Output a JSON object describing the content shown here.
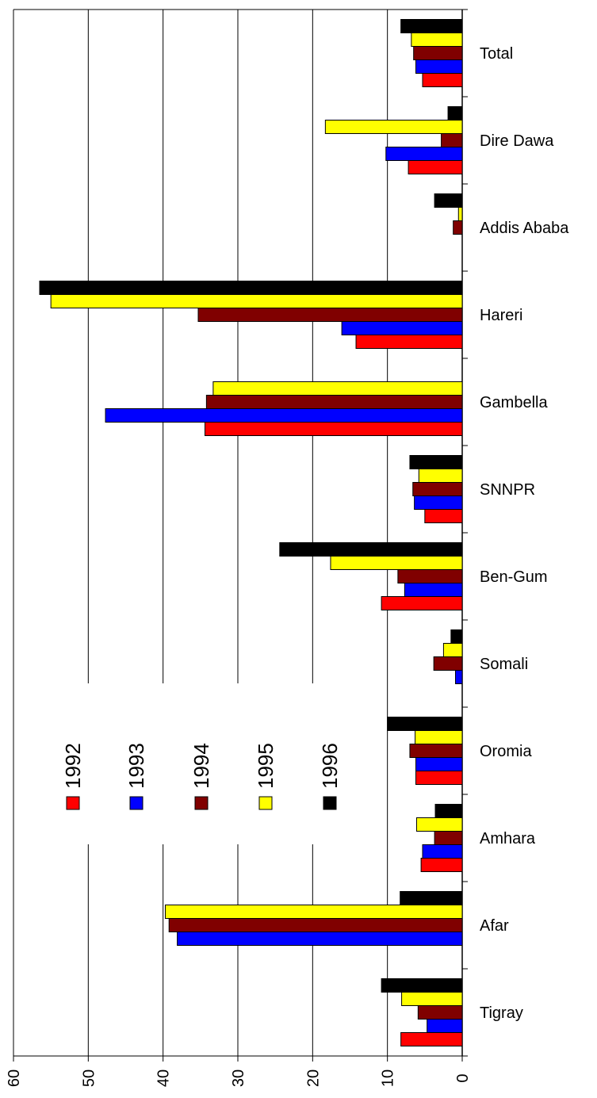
{
  "chart_data": {
    "type": "bar",
    "orientation": "horizontal",
    "categories": [
      "Total",
      "Dire Dawa",
      "Addis Ababa",
      "Hareri",
      "Gambella",
      "SNNPR",
      "Ben-Gum",
      "Somali",
      "Oromia",
      "Amhara",
      "Afar",
      "Tigray"
    ],
    "series": [
      {
        "name": "1992",
        "color": "#ff0000",
        "values": [
          5.3,
          7.2,
          0,
          14.2,
          34.4,
          5.0,
          10.8,
          0,
          6.2,
          5.5,
          0,
          8.2
        ]
      },
      {
        "name": "1993",
        "color": "#0000ff",
        "values": [
          6.2,
          10.2,
          0,
          16.1,
          47.7,
          6.4,
          7.7,
          0.9,
          6.2,
          5.3,
          38.1,
          4.7
        ]
      },
      {
        "name": "1994",
        "color": "#800000",
        "values": [
          6.5,
          2.8,
          1.2,
          35.3,
          34.2,
          6.6,
          8.6,
          3.8,
          7.0,
          3.7,
          39.2,
          5.9
        ]
      },
      {
        "name": "1995",
        "color": "#ffff00",
        "values": [
          6.8,
          18.3,
          0.5,
          55.0,
          33.3,
          5.8,
          17.6,
          2.5,
          6.3,
          6.1,
          39.7,
          8.1
        ]
      },
      {
        "name": "1996",
        "color": "#000000",
        "values": [
          8.2,
          1.9,
          3.7,
          56.5,
          0,
          7.0,
          24.4,
          1.5,
          10.0,
          3.6,
          8.3,
          10.8
        ]
      }
    ],
    "xlim": [
      0,
      60
    ],
    "xticks": [
      0,
      10,
      20,
      30,
      40,
      50,
      60
    ],
    "grid": true
  }
}
